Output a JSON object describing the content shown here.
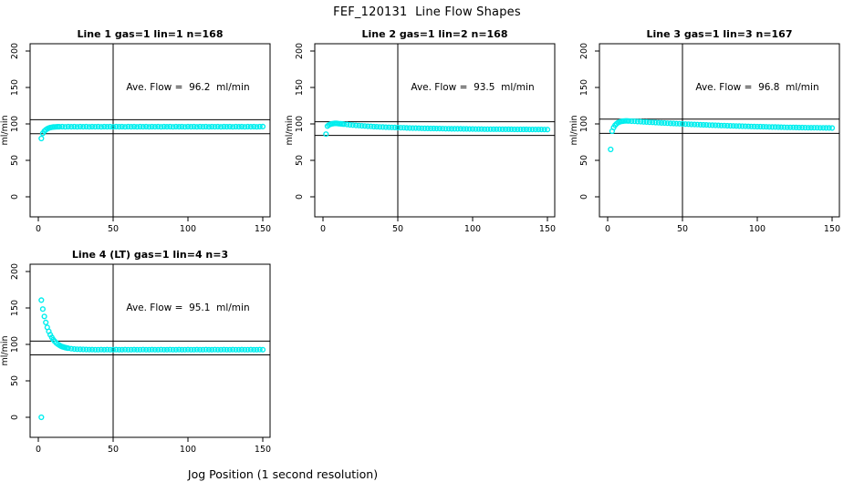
{
  "page": {
    "title": "FEF_120131  Line Flow Shapes",
    "xlabel": "Jog Position (1 second resolution)"
  },
  "colors": {
    "point": "#00EEEE",
    "axis": "#000000",
    "background": "#FFFFFF"
  },
  "chart_data": [
    {
      "type": "scatter",
      "name": "line-1",
      "title": "Line 1 gas=1 lin=1 n=168",
      "annotation": "Ave. Flow =  96.2  ml/min",
      "ave_flow": 96.2,
      "ylabel": "ml/min",
      "x_ticks": [
        0,
        50,
        100,
        150
      ],
      "y_ticks": [
        0,
        50,
        100,
        150,
        200
      ],
      "xlim": [
        -6,
        155
      ],
      "ylim": [
        -28,
        210
      ],
      "ref_vline_x": 50,
      "ref_hlines": [
        105.8,
        86.6
      ],
      "grid": false,
      "points": [
        [
          2,
          80
        ],
        [
          3,
          87
        ],
        [
          4,
          90
        ],
        [
          5,
          91.9
        ],
        [
          6,
          93.2
        ],
        [
          7,
          94.2
        ],
        [
          8,
          95
        ],
        [
          9,
          95.4
        ],
        [
          10,
          95.7
        ],
        [
          11,
          95.9
        ],
        [
          12,
          96
        ],
        [
          13,
          96.1
        ],
        [
          14,
          96.1
        ],
        [
          16,
          96.2
        ],
        [
          18,
          96.0
        ],
        [
          20,
          96.3
        ],
        [
          22,
          96.1
        ],
        [
          24,
          96.2
        ],
        [
          26,
          96.0
        ],
        [
          28,
          96.3
        ],
        [
          30,
          96.1
        ],
        [
          32,
          96.2
        ],
        [
          34,
          96.0
        ],
        [
          36,
          96.3
        ],
        [
          38,
          96.1
        ],
        [
          40,
          96.2
        ],
        [
          42,
          96.0
        ],
        [
          44,
          96.3
        ],
        [
          46,
          96.1
        ],
        [
          48,
          96.2
        ],
        [
          50,
          96.0
        ],
        [
          52,
          96.3
        ],
        [
          54,
          96.1
        ],
        [
          56,
          96.2
        ],
        [
          58,
          96.0
        ],
        [
          60,
          96.3
        ],
        [
          62,
          96.1
        ],
        [
          64,
          96.2
        ],
        [
          66,
          96.0
        ],
        [
          68,
          96.3
        ],
        [
          70,
          96.1
        ],
        [
          72,
          96.2
        ],
        [
          74,
          96.0
        ],
        [
          76,
          96.3
        ],
        [
          78,
          96.1
        ],
        [
          80,
          96.2
        ],
        [
          82,
          96.0
        ],
        [
          84,
          96.3
        ],
        [
          86,
          96.1
        ],
        [
          88,
          96.2
        ],
        [
          90,
          96.0
        ],
        [
          92,
          96.3
        ],
        [
          94,
          96.1
        ],
        [
          96,
          96.2
        ],
        [
          98,
          96.0
        ],
        [
          100,
          96.3
        ],
        [
          102,
          96.1
        ],
        [
          104,
          96.2
        ],
        [
          106,
          96.0
        ],
        [
          108,
          96.3
        ],
        [
          110,
          96.1
        ],
        [
          112,
          96.2
        ],
        [
          114,
          96.0
        ],
        [
          116,
          96.3
        ],
        [
          118,
          96.1
        ],
        [
          120,
          96.2
        ],
        [
          122,
          96.0
        ],
        [
          124,
          96.3
        ],
        [
          126,
          96.1
        ],
        [
          128,
          96.2
        ],
        [
          130,
          96.0
        ],
        [
          132,
          96.3
        ],
        [
          134,
          96.1
        ],
        [
          136,
          96.2
        ],
        [
          138,
          96.0
        ],
        [
          140,
          96.3
        ],
        [
          142,
          96.1
        ],
        [
          144,
          96.2
        ],
        [
          146,
          96.0
        ],
        [
          148,
          96.3
        ],
        [
          150,
          96.4
        ]
      ]
    },
    {
      "type": "scatter",
      "name": "line-2",
      "title": "Line 2 gas=1 lin=2 n=168",
      "annotation": "Ave. Flow =  93.5  ml/min",
      "ave_flow": 93.5,
      "ylabel": "ml/min",
      "x_ticks": [
        0,
        50,
        100,
        150
      ],
      "y_ticks": [
        0,
        50,
        100,
        150,
        200
      ],
      "xlim": [
        -6,
        155
      ],
      "ylim": [
        -28,
        210
      ],
      "ref_vline_x": 50,
      "ref_hlines": [
        102.9,
        84.2
      ],
      "grid": false,
      "points": [
        [
          2,
          86
        ],
        [
          3,
          97
        ],
        [
          4,
          98.6
        ],
        [
          5,
          99.5
        ],
        [
          6,
          100.1
        ],
        [
          7,
          100.5
        ],
        [
          8,
          100.7
        ],
        [
          9,
          100.7
        ],
        [
          10,
          100.5
        ],
        [
          11,
          100.3
        ],
        [
          12,
          100.1
        ],
        [
          13,
          99.9
        ],
        [
          14,
          99.6
        ],
        [
          16,
          99.2
        ],
        [
          18,
          98.8
        ],
        [
          20,
          98.4
        ],
        [
          22,
          98
        ],
        [
          24,
          97.7
        ],
        [
          26,
          97.4
        ],
        [
          28,
          97.1
        ],
        [
          30,
          96.8
        ],
        [
          32,
          96.6
        ],
        [
          34,
          96.3
        ],
        [
          36,
          96.1
        ],
        [
          38,
          95.9
        ],
        [
          40,
          95.7
        ],
        [
          42,
          95.5
        ],
        [
          44,
          95.4
        ],
        [
          46,
          95.2
        ],
        [
          48,
          95.1
        ],
        [
          50,
          94.9
        ],
        [
          52,
          94.8
        ],
        [
          54,
          94.7
        ],
        [
          56,
          94.5
        ],
        [
          58,
          94.4
        ],
        [
          60,
          94.3
        ],
        [
          62,
          94.2
        ],
        [
          64,
          94.1
        ],
        [
          66,
          94
        ],
        [
          68,
          93.9
        ],
        [
          70,
          93.9
        ],
        [
          72,
          93.8
        ],
        [
          74,
          93.7
        ],
        [
          76,
          93.6
        ],
        [
          78,
          93.6
        ],
        [
          80,
          93.5
        ],
        [
          82,
          93.4
        ],
        [
          84,
          93.4
        ],
        [
          86,
          93.3
        ],
        [
          88,
          93.3
        ],
        [
          90,
          93.2
        ],
        [
          92,
          93.2
        ],
        [
          94,
          93.1
        ],
        [
          96,
          93.1
        ],
        [
          98,
          93
        ],
        [
          100,
          93
        ],
        [
          102,
          92.9
        ],
        [
          104,
          92.9
        ],
        [
          106,
          92.9
        ],
        [
          108,
          92.8
        ],
        [
          110,
          92.8
        ],
        [
          112,
          92.8
        ],
        [
          114,
          92.7
        ],
        [
          116,
          92.7
        ],
        [
          118,
          92.7
        ],
        [
          120,
          92.6
        ],
        [
          122,
          92.6
        ],
        [
          124,
          92.6
        ],
        [
          126,
          92.6
        ],
        [
          128,
          92.5
        ],
        [
          130,
          92.5
        ],
        [
          132,
          92.5
        ],
        [
          134,
          92.5
        ],
        [
          136,
          92.5
        ],
        [
          138,
          92.4
        ],
        [
          140,
          92.4
        ],
        [
          142,
          92.4
        ],
        [
          144,
          92.4
        ],
        [
          146,
          92.4
        ],
        [
          148,
          92.3
        ],
        [
          150,
          92.3
        ]
      ]
    },
    {
      "type": "scatter",
      "name": "line-3",
      "title": "Line 3 gas=1 lin=3 n=167",
      "annotation": "Ave. Flow =  96.8  ml/min",
      "ave_flow": 96.8,
      "ylabel": "ml/min",
      "x_ticks": [
        0,
        50,
        100,
        150
      ],
      "y_ticks": [
        0,
        50,
        100,
        150,
        200
      ],
      "xlim": [
        -6,
        155
      ],
      "ylim": [
        -28,
        210
      ],
      "ref_vline_x": 50,
      "ref_hlines": [
        106.5,
        87.1
      ],
      "grid": false,
      "points": [
        [
          2,
          65
        ],
        [
          3,
          90
        ],
        [
          4,
          95
        ],
        [
          5,
          98.2
        ],
        [
          6,
          100.3
        ],
        [
          7,
          101.8
        ],
        [
          8,
          102.8
        ],
        [
          9,
          103.4
        ],
        [
          10,
          103.8
        ],
        [
          11,
          104
        ],
        [
          12,
          104.1
        ],
        [
          13,
          104.1
        ],
        [
          14,
          104
        ],
        [
          16,
          103.8
        ],
        [
          18,
          103.6
        ],
        [
          20,
          103.3
        ],
        [
          22,
          103.1
        ],
        [
          24,
          102.8
        ],
        [
          26,
          102.6
        ],
        [
          28,
          102.3
        ],
        [
          30,
          102.1
        ],
        [
          32,
          101.9
        ],
        [
          34,
          101.6
        ],
        [
          36,
          101.4
        ],
        [
          38,
          101.2
        ],
        [
          40,
          101
        ],
        [
          42,
          100.8
        ],
        [
          44,
          100.6
        ],
        [
          46,
          100.4
        ],
        [
          48,
          100.2
        ],
        [
          50,
          100
        ],
        [
          52,
          99.8
        ],
        [
          54,
          99.6
        ],
        [
          56,
          99.4
        ],
        [
          58,
          99.3
        ],
        [
          60,
          99.1
        ],
        [
          62,
          98.9
        ],
        [
          64,
          98.8
        ],
        [
          66,
          98.6
        ],
        [
          68,
          98.4
        ],
        [
          70,
          98.3
        ],
        [
          72,
          98.1
        ],
        [
          74,
          98
        ],
        [
          76,
          97.8
        ],
        [
          78,
          97.7
        ],
        [
          80,
          97.5
        ],
        [
          82,
          97.4
        ],
        [
          84,
          97.3
        ],
        [
          86,
          97.1
        ],
        [
          88,
          97
        ],
        [
          90,
          96.9
        ],
        [
          92,
          96.7
        ],
        [
          94,
          96.6
        ],
        [
          96,
          96.5
        ],
        [
          98,
          96.4
        ],
        [
          100,
          96.3
        ],
        [
          102,
          96.2
        ],
        [
          104,
          96.1
        ],
        [
          106,
          96
        ],
        [
          108,
          95.9
        ],
        [
          110,
          95.8
        ],
        [
          112,
          95.7
        ],
        [
          114,
          95.6
        ],
        [
          116,
          95.5
        ],
        [
          118,
          95.4
        ],
        [
          120,
          95.3
        ],
        [
          122,
          95.3
        ],
        [
          124,
          95.2
        ],
        [
          126,
          95.1
        ],
        [
          128,
          95
        ],
        [
          130,
          95
        ],
        [
          132,
          94.9
        ],
        [
          134,
          94.8
        ],
        [
          136,
          94.8
        ],
        [
          138,
          94.7
        ],
        [
          140,
          94.7
        ],
        [
          142,
          94.6
        ],
        [
          144,
          94.6
        ],
        [
          146,
          94.5
        ],
        [
          148,
          94.5
        ],
        [
          150,
          94.4
        ]
      ]
    },
    {
      "type": "scatter",
      "name": "line-4",
      "title": "Line 4 (LT) gas=1 lin=4 n=3",
      "annotation": "Ave. Flow =  95.1  ml/min",
      "ave_flow": 95.1,
      "ylabel": "ml/min",
      "x_ticks": [
        0,
        50,
        100,
        150
      ],
      "y_ticks": [
        0,
        50,
        100,
        150,
        200
      ],
      "xlim": [
        -6,
        155
      ],
      "ylim": [
        -28,
        210
      ],
      "ref_vline_x": 50,
      "ref_hlines": [
        104.6,
        85.6
      ],
      "grid": false,
      "points": [
        [
          2,
          0
        ],
        [
          2,
          160.7
        ],
        [
          3,
          148.5
        ],
        [
          4,
          138.4
        ],
        [
          5,
          130.1
        ],
        [
          6,
          123.4
        ],
        [
          7,
          117.9
        ],
        [
          8,
          113.3
        ],
        [
          9,
          109.6
        ],
        [
          10,
          106.5
        ],
        [
          11,
          104.1
        ],
        [
          12,
          102
        ],
        [
          13,
          100.4
        ],
        [
          14,
          99
        ],
        [
          15,
          97.8
        ],
        [
          16,
          96.9
        ],
        [
          17,
          96.2
        ],
        [
          18,
          95.6
        ],
        [
          19,
          95.1
        ],
        [
          20,
          94.7
        ],
        [
          22,
          94.1
        ],
        [
          24,
          93.6
        ],
        [
          26,
          93.4
        ],
        [
          28,
          93.2
        ],
        [
          30,
          93.1
        ],
        [
          32,
          93
        ],
        [
          34,
          92.9
        ],
        [
          36,
          92.9
        ],
        [
          38,
          92.8
        ],
        [
          40,
          92.8
        ],
        [
          42,
          92.9
        ],
        [
          44,
          92.8
        ],
        [
          46,
          92.9
        ],
        [
          48,
          92.8
        ],
        [
          50,
          92.8
        ],
        [
          52,
          92.9
        ],
        [
          54,
          92.8
        ],
        [
          56,
          92.8
        ],
        [
          58,
          92.9
        ],
        [
          60,
          92.8
        ],
        [
          62,
          92.8
        ],
        [
          64,
          92.9
        ],
        [
          66,
          92.8
        ],
        [
          68,
          92.8
        ],
        [
          70,
          92.9
        ],
        [
          72,
          92.8
        ],
        [
          74,
          92.8
        ],
        [
          76,
          92.9
        ],
        [
          78,
          92.8
        ],
        [
          80,
          92.8
        ],
        [
          82,
          92.9
        ],
        [
          84,
          92.8
        ],
        [
          86,
          92.8
        ],
        [
          88,
          92.9
        ],
        [
          90,
          92.8
        ],
        [
          92,
          92.8
        ],
        [
          94,
          92.9
        ],
        [
          96,
          92.8
        ],
        [
          98,
          92.8
        ],
        [
          100,
          92.9
        ],
        [
          102,
          92.8
        ],
        [
          104,
          92.8
        ],
        [
          106,
          92.9
        ],
        [
          108,
          92.8
        ],
        [
          110,
          92.8
        ],
        [
          112,
          92.9
        ],
        [
          114,
          92.8
        ],
        [
          116,
          92.8
        ],
        [
          118,
          92.9
        ],
        [
          120,
          92.8
        ],
        [
          122,
          92.8
        ],
        [
          124,
          92.9
        ],
        [
          126,
          92.8
        ],
        [
          128,
          92.8
        ],
        [
          130,
          92.9
        ],
        [
          132,
          92.8
        ],
        [
          134,
          92.8
        ],
        [
          136,
          92.9
        ],
        [
          138,
          92.8
        ],
        [
          140,
          92.8
        ],
        [
          142,
          92.9
        ],
        [
          144,
          92.8
        ],
        [
          146,
          92.8
        ],
        [
          148,
          92.9
        ],
        [
          150,
          92.8
        ]
      ]
    }
  ]
}
